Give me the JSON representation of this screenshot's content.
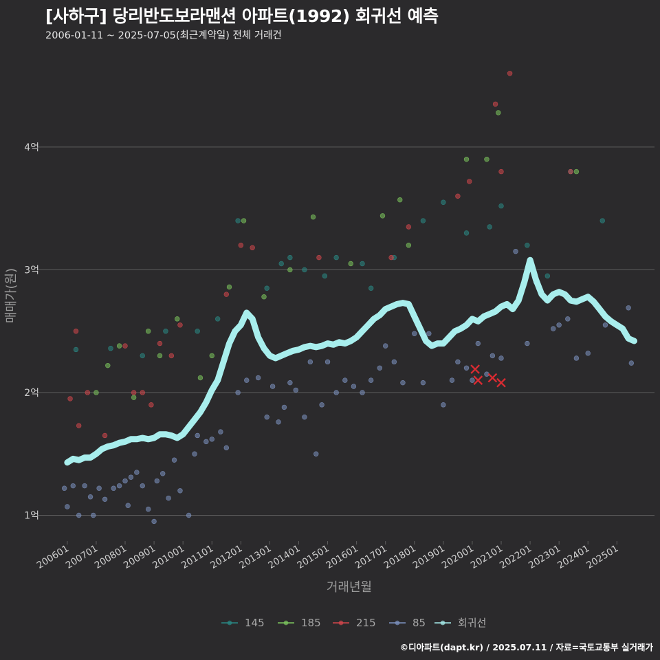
{
  "header": {
    "title": "[사하구] 당리반도보라맨션 아파트(1992) 회귀선 예측",
    "subtitle": "2006-01-11 ~ 2025-07-05(최근계약일) 전체 거래건"
  },
  "footer": {
    "credit": "©디아파트(dapt.kr) / 2025.07.11 / 자료=국토교통부 실거래가"
  },
  "colors": {
    "background": "#2b2a2c",
    "gridline": "#5e5e5e",
    "s145": "#2a8a86",
    "s185": "#7ec85e",
    "s215": "#d6474d",
    "s85": "#7e93c2",
    "regression": "#a8eeed",
    "cancelled_marker": "#d92b32"
  },
  "chart_data": {
    "type": "scatter",
    "xlabel": "거래년월",
    "ylabel": "매매가(원)",
    "x_ticks": [
      "200601",
      "200701",
      "200801",
      "200901",
      "201001",
      "201101",
      "201201",
      "201301",
      "201401",
      "201501",
      "201601",
      "201701",
      "201801",
      "201901",
      "202001",
      "202101",
      "202201",
      "202301",
      "202401",
      "202501"
    ],
    "y_ticks": [
      {
        "value": 1.0,
        "label": "1억"
      },
      {
        "value": 2.0,
        "label": "2억"
      },
      {
        "value": 3.0,
        "label": "3억"
      },
      {
        "value": 4.0,
        "label": "4억"
      }
    ],
    "xlim": [
      2005.1,
      2026.3
    ],
    "ylim": [
      0.79,
      4.75
    ],
    "legend_position": "bottom",
    "series": [
      {
        "name": "145",
        "values": [
          [
            2006.3,
            2.35
          ],
          [
            2007.5,
            2.36
          ],
          [
            2008.6,
            2.3
          ],
          [
            2009.4,
            2.5
          ],
          [
            2010.5,
            2.5
          ],
          [
            2011.2,
            2.6
          ],
          [
            2011.9,
            3.4
          ],
          [
            2012.9,
            2.85
          ],
          [
            2013.4,
            3.05
          ],
          [
            2013.7,
            3.1
          ],
          [
            2014.2,
            3.0
          ],
          [
            2014.9,
            2.95
          ],
          [
            2015.3,
            3.1
          ],
          [
            2016.2,
            3.05
          ],
          [
            2016.5,
            2.85
          ],
          [
            2017.3,
            3.1
          ],
          [
            2018.3,
            3.4
          ],
          [
            2019.0,
            3.55
          ],
          [
            2019.8,
            3.3
          ],
          [
            2020.6,
            3.35
          ],
          [
            2021.0,
            3.52
          ],
          [
            2021.9,
            3.2
          ],
          [
            2022.6,
            2.95
          ],
          [
            2023.4,
            3.8
          ],
          [
            2024.5,
            3.4
          ]
        ]
      },
      {
        "name": "185",
        "values": [
          [
            2007.0,
            2.0
          ],
          [
            2007.4,
            2.22
          ],
          [
            2007.8,
            2.38
          ],
          [
            2008.3,
            1.96
          ],
          [
            2008.8,
            2.5
          ],
          [
            2009.2,
            2.3
          ],
          [
            2009.8,
            2.6
          ],
          [
            2010.6,
            2.12
          ],
          [
            2011.0,
            2.3
          ],
          [
            2011.6,
            2.86
          ],
          [
            2012.1,
            3.4
          ],
          [
            2012.8,
            2.78
          ],
          [
            2013.7,
            3.0
          ],
          [
            2014.5,
            3.43
          ],
          [
            2015.8,
            3.05
          ],
          [
            2016.9,
            3.44
          ],
          [
            2017.5,
            3.57
          ],
          [
            2017.8,
            3.2
          ],
          [
            2019.8,
            3.9
          ],
          [
            2020.5,
            3.9
          ],
          [
            2020.9,
            4.28
          ],
          [
            2023.6,
            3.8
          ]
        ]
      },
      {
        "name": "215",
        "values": [
          [
            2006.1,
            1.95
          ],
          [
            2006.3,
            2.5
          ],
          [
            2006.4,
            1.73
          ],
          [
            2006.7,
            2.0
          ],
          [
            2007.3,
            1.65
          ],
          [
            2008.0,
            2.38
          ],
          [
            2008.3,
            2.0
          ],
          [
            2008.6,
            2.0
          ],
          [
            2008.9,
            1.9
          ],
          [
            2009.2,
            2.4
          ],
          [
            2009.6,
            2.3
          ],
          [
            2009.9,
            2.55
          ],
          [
            2011.5,
            2.8
          ],
          [
            2012.0,
            3.2
          ],
          [
            2012.4,
            3.18
          ],
          [
            2014.7,
            3.1
          ],
          [
            2017.2,
            3.1
          ],
          [
            2017.8,
            3.35
          ],
          [
            2019.5,
            3.6
          ],
          [
            2019.9,
            3.72
          ],
          [
            2020.8,
            4.35
          ],
          [
            2021.3,
            4.6
          ],
          [
            2021.0,
            3.8
          ],
          [
            2023.4,
            3.8
          ]
        ]
      },
      {
        "name": "85",
        "values": [
          [
            2005.9,
            1.22
          ],
          [
            2006.0,
            1.07
          ],
          [
            2006.2,
            1.24
          ],
          [
            2006.4,
            1.0
          ],
          [
            2006.6,
            1.24
          ],
          [
            2006.8,
            1.15
          ],
          [
            2006.9,
            1.0
          ],
          [
            2007.1,
            1.22
          ],
          [
            2007.3,
            1.13
          ],
          [
            2007.6,
            1.22
          ],
          [
            2007.8,
            1.24
          ],
          [
            2008.0,
            1.28
          ],
          [
            2008.1,
            1.08
          ],
          [
            2008.2,
            1.31
          ],
          [
            2008.4,
            1.35
          ],
          [
            2008.6,
            1.24
          ],
          [
            2008.8,
            1.05
          ],
          [
            2009.0,
            0.95
          ],
          [
            2009.1,
            1.28
          ],
          [
            2009.3,
            1.34
          ],
          [
            2009.5,
            1.14
          ],
          [
            2009.7,
            1.45
          ],
          [
            2009.9,
            1.2
          ],
          [
            2010.2,
            1.0
          ],
          [
            2010.4,
            1.5
          ],
          [
            2010.5,
            1.65
          ],
          [
            2010.8,
            1.6
          ],
          [
            2011.0,
            1.62
          ],
          [
            2011.3,
            1.68
          ],
          [
            2011.5,
            1.55
          ],
          [
            2011.9,
            2.0
          ],
          [
            2012.2,
            2.1
          ],
          [
            2012.6,
            2.12
          ],
          [
            2012.9,
            1.8
          ],
          [
            2013.1,
            2.05
          ],
          [
            2013.3,
            1.76
          ],
          [
            2013.5,
            1.88
          ],
          [
            2013.7,
            2.08
          ],
          [
            2013.9,
            2.02
          ],
          [
            2014.2,
            1.8
          ],
          [
            2014.4,
            2.25
          ],
          [
            2014.6,
            1.5
          ],
          [
            2014.8,
            1.9
          ],
          [
            2015.0,
            2.25
          ],
          [
            2015.3,
            2.0
          ],
          [
            2015.6,
            2.1
          ],
          [
            2015.9,
            2.05
          ],
          [
            2016.2,
            2.0
          ],
          [
            2016.5,
            2.1
          ],
          [
            2016.8,
            2.2
          ],
          [
            2017.0,
            2.38
          ],
          [
            2017.3,
            2.25
          ],
          [
            2017.6,
            2.08
          ],
          [
            2018.0,
            2.48
          ],
          [
            2018.3,
            2.08
          ],
          [
            2018.5,
            2.48
          ],
          [
            2019.0,
            1.9
          ],
          [
            2019.3,
            2.1
          ],
          [
            2019.5,
            2.25
          ],
          [
            2019.8,
            2.2
          ],
          [
            2020.0,
            2.1
          ],
          [
            2020.2,
            2.4
          ],
          [
            2020.5,
            2.15
          ],
          [
            2020.7,
            2.3
          ],
          [
            2021.0,
            2.28
          ],
          [
            2021.5,
            3.15
          ],
          [
            2021.9,
            2.4
          ],
          [
            2022.2,
            2.9
          ],
          [
            2022.8,
            2.52
          ],
          [
            2023.0,
            2.55
          ],
          [
            2023.3,
            2.6
          ],
          [
            2023.6,
            2.28
          ],
          [
            2024.0,
            2.32
          ],
          [
            2024.6,
            2.55
          ],
          [
            2025.4,
            2.69
          ],
          [
            2025.5,
            2.24
          ]
        ]
      },
      {
        "name": "회귀선",
        "values": [
          [
            2006.0,
            1.43
          ],
          [
            2006.2,
            1.46
          ],
          [
            2006.4,
            1.45
          ],
          [
            2006.6,
            1.47
          ],
          [
            2006.8,
            1.47
          ],
          [
            2007.0,
            1.5
          ],
          [
            2007.2,
            1.54
          ],
          [
            2007.4,
            1.56
          ],
          [
            2007.6,
            1.57
          ],
          [
            2007.8,
            1.59
          ],
          [
            2008.0,
            1.6
          ],
          [
            2008.2,
            1.62
          ],
          [
            2008.4,
            1.62
          ],
          [
            2008.6,
            1.63
          ],
          [
            2008.8,
            1.62
          ],
          [
            2009.0,
            1.63
          ],
          [
            2009.2,
            1.66
          ],
          [
            2009.4,
            1.66
          ],
          [
            2009.6,
            1.65
          ],
          [
            2009.8,
            1.63
          ],
          [
            2010.0,
            1.66
          ],
          [
            2010.2,
            1.72
          ],
          [
            2010.4,
            1.78
          ],
          [
            2010.6,
            1.84
          ],
          [
            2010.8,
            1.92
          ],
          [
            2011.0,
            2.02
          ],
          [
            2011.2,
            2.1
          ],
          [
            2011.4,
            2.25
          ],
          [
            2011.6,
            2.4
          ],
          [
            2011.8,
            2.5
          ],
          [
            2012.0,
            2.55
          ],
          [
            2012.2,
            2.65
          ],
          [
            2012.4,
            2.6
          ],
          [
            2012.6,
            2.45
          ],
          [
            2012.8,
            2.36
          ],
          [
            2013.0,
            2.3
          ],
          [
            2013.2,
            2.28
          ],
          [
            2013.4,
            2.3
          ],
          [
            2013.6,
            2.32
          ],
          [
            2013.8,
            2.34
          ],
          [
            2014.0,
            2.35
          ],
          [
            2014.2,
            2.37
          ],
          [
            2014.4,
            2.38
          ],
          [
            2014.6,
            2.37
          ],
          [
            2014.8,
            2.38
          ],
          [
            2015.0,
            2.4
          ],
          [
            2015.2,
            2.39
          ],
          [
            2015.4,
            2.41
          ],
          [
            2015.6,
            2.4
          ],
          [
            2015.8,
            2.42
          ],
          [
            2016.0,
            2.45
          ],
          [
            2016.2,
            2.5
          ],
          [
            2016.4,
            2.55
          ],
          [
            2016.6,
            2.6
          ],
          [
            2016.8,
            2.63
          ],
          [
            2017.0,
            2.68
          ],
          [
            2017.2,
            2.7
          ],
          [
            2017.4,
            2.72
          ],
          [
            2017.6,
            2.73
          ],
          [
            2017.8,
            2.72
          ],
          [
            2018.0,
            2.62
          ],
          [
            2018.2,
            2.52
          ],
          [
            2018.4,
            2.42
          ],
          [
            2018.6,
            2.38
          ],
          [
            2018.8,
            2.4
          ],
          [
            2019.0,
            2.4
          ],
          [
            2019.2,
            2.45
          ],
          [
            2019.4,
            2.5
          ],
          [
            2019.6,
            2.52
          ],
          [
            2019.8,
            2.55
          ],
          [
            2020.0,
            2.6
          ],
          [
            2020.2,
            2.58
          ],
          [
            2020.4,
            2.62
          ],
          [
            2020.6,
            2.64
          ],
          [
            2020.8,
            2.66
          ],
          [
            2021.0,
            2.7
          ],
          [
            2021.2,
            2.72
          ],
          [
            2021.4,
            2.68
          ],
          [
            2021.6,
            2.75
          ],
          [
            2021.8,
            2.9
          ],
          [
            2022.0,
            3.08
          ],
          [
            2022.2,
            2.92
          ],
          [
            2022.4,
            2.8
          ],
          [
            2022.6,
            2.75
          ],
          [
            2022.8,
            2.8
          ],
          [
            2023.0,
            2.82
          ],
          [
            2023.2,
            2.8
          ],
          [
            2023.4,
            2.75
          ],
          [
            2023.6,
            2.74
          ],
          [
            2023.8,
            2.76
          ],
          [
            2024.0,
            2.78
          ],
          [
            2024.2,
            2.74
          ],
          [
            2024.4,
            2.68
          ],
          [
            2024.6,
            2.62
          ],
          [
            2024.8,
            2.58
          ],
          [
            2025.0,
            2.55
          ],
          [
            2025.2,
            2.52
          ],
          [
            2025.4,
            2.44
          ],
          [
            2025.6,
            2.42
          ]
        ]
      }
    ],
    "cancelled_deals": [
      [
        2020.1,
        2.19
      ],
      [
        2020.2,
        2.1
      ],
      [
        2020.7,
        2.12
      ],
      [
        2021.0,
        2.08
      ]
    ]
  }
}
